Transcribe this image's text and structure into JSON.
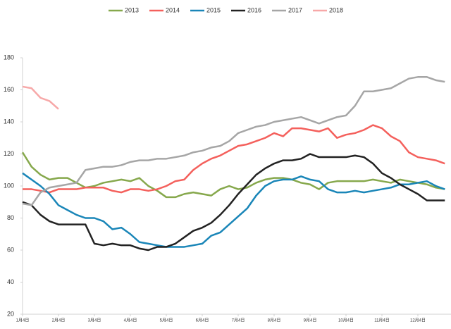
{
  "chart_data": {
    "type": "line",
    "categories": [
      "1月4日",
      null,
      null,
      null,
      "2月4日",
      null,
      null,
      null,
      "3月4日",
      null,
      null,
      null,
      "4月4日",
      null,
      null,
      null,
      "5月4日",
      null,
      null,
      null,
      "6月4日",
      null,
      null,
      null,
      "7月4日",
      null,
      null,
      null,
      "8月4日",
      null,
      null,
      null,
      "9月4日",
      null,
      null,
      null,
      "10月4日",
      null,
      null,
      null,
      "11月4日",
      null,
      null,
      null,
      "12月4日",
      null,
      null,
      null
    ],
    "ylim": [
      20,
      180
    ],
    "yticks": [
      20,
      40,
      60,
      80,
      100,
      120,
      140,
      160,
      180
    ],
    "legend": "top",
    "series": [
      {
        "name": "2013",
        "color": "#86a84c",
        "values": [
          121,
          112,
          107,
          104,
          105,
          105,
          102,
          99,
          100,
          102,
          103,
          104,
          103,
          105,
          100,
          97,
          93,
          93,
          95,
          96,
          95,
          94,
          98,
          100,
          98,
          99,
          102,
          104,
          105,
          105,
          104,
          102,
          101,
          98,
          102,
          103,
          103,
          103,
          103,
          104,
          103,
          102,
          104,
          103,
          102,
          101,
          99,
          98
        ]
      },
      {
        "name": "2014",
        "color": "#f4605c",
        "values": [
          98,
          98,
          97,
          96,
          98,
          98,
          98,
          99,
          99,
          99,
          97,
          96,
          98,
          98,
          97,
          98,
          100,
          103,
          104,
          110,
          114,
          117,
          119,
          122,
          125,
          126,
          128,
          130,
          133,
          131,
          136,
          136,
          135,
          134,
          136,
          130,
          132,
          133,
          135,
          138,
          136,
          131,
          128,
          121,
          118,
          117,
          116,
          114
        ]
      },
      {
        "name": "2015",
        "color": "#1a86b8",
        "values": [
          108,
          104,
          100,
          95,
          88,
          85,
          82,
          80,
          80,
          78,
          73,
          74,
          70,
          65,
          64,
          63,
          62,
          62,
          62,
          63,
          64,
          69,
          71,
          76,
          81,
          86,
          94,
          100,
          103,
          104,
          104,
          106,
          104,
          103,
          98,
          96,
          96,
          97,
          96,
          97,
          98,
          99,
          101,
          101,
          102,
          103,
          100,
          98
        ]
      },
      {
        "name": "2016",
        "color": "#222222",
        "values": [
          90,
          88,
          82,
          78,
          76,
          76,
          76,
          76,
          64,
          63,
          64,
          63,
          63,
          61,
          60,
          62,
          62,
          64,
          68,
          72,
          74,
          77,
          82,
          88,
          95,
          101,
          107,
          111,
          114,
          116,
          116,
          117,
          120,
          118,
          118,
          118,
          118,
          119,
          118,
          114,
          108,
          105,
          101,
          98,
          95,
          91,
          91,
          91
        ]
      },
      {
        "name": "2017",
        "color": "#a6a6a6",
        "values": [
          89,
          88,
          96,
          99,
          100,
          101,
          102,
          110,
          111,
          112,
          112,
          113,
          115,
          116,
          116,
          117,
          117,
          118,
          119,
          121,
          122,
          124,
          125,
          128,
          133,
          135,
          137,
          138,
          140,
          141,
          142,
          143,
          141,
          139,
          141,
          143,
          144,
          150,
          159,
          159,
          160,
          161,
          164,
          167,
          168,
          168,
          166,
          165
        ]
      },
      {
        "name": "2018",
        "color": "#f7a8a8",
        "values": [
          162,
          161,
          155,
          153,
          148,
          null,
          null,
          null,
          null,
          null,
          null,
          null,
          null,
          null,
          null,
          null,
          null,
          null,
          null,
          null,
          null,
          null,
          null,
          null,
          null,
          null,
          null,
          null,
          null,
          null,
          null,
          null,
          null,
          null,
          null,
          null,
          null,
          null,
          null,
          null,
          null,
          null,
          null,
          null,
          null,
          null,
          null,
          null
        ]
      }
    ]
  }
}
